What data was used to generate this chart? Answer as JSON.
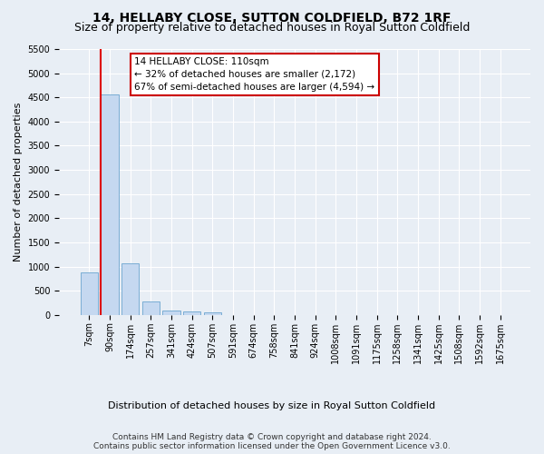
{
  "title": "14, HELLABY CLOSE, SUTTON COLDFIELD, B72 1RF",
  "subtitle": "Size of property relative to detached houses in Royal Sutton Coldfield",
  "xlabel": "Distribution of detached houses by size in Royal Sutton Coldfield",
  "ylabel": "Number of detached properties",
  "footer_line1": "Contains HM Land Registry data © Crown copyright and database right 2024.",
  "footer_line2": "Contains public sector information licensed under the Open Government Licence v3.0.",
  "annotation_title": "14 HELLABY CLOSE: 110sqm",
  "annotation_line2": "← 32% of detached houses are smaller (2,172)",
  "annotation_line3": "67% of semi-detached houses are larger (4,594) →",
  "bar_labels": [
    "7sqm",
    "90sqm",
    "174sqm",
    "257sqm",
    "341sqm",
    "424sqm",
    "507sqm",
    "591sqm",
    "674sqm",
    "758sqm",
    "841sqm",
    "924sqm",
    "1008sqm",
    "1091sqm",
    "1175sqm",
    "1258sqm",
    "1341sqm",
    "1425sqm",
    "1508sqm",
    "1592sqm",
    "1675sqm"
  ],
  "bar_values": [
    880,
    4560,
    1060,
    280,
    95,
    80,
    55,
    0,
    0,
    0,
    0,
    0,
    0,
    0,
    0,
    0,
    0,
    0,
    0,
    0,
    0
  ],
  "bar_color": "#c5d8f0",
  "bar_edge_color": "#7aadd4",
  "ylim": [
    0,
    5500
  ],
  "yticks": [
    0,
    500,
    1000,
    1500,
    2000,
    2500,
    3000,
    3500,
    4000,
    4500,
    5000,
    5500
  ],
  "bg_color": "#e8eef5",
  "plot_bg_color": "#e8eef5",
  "annotation_box_edgecolor": "#cc0000",
  "red_line_color": "#dd0000",
  "title_fontsize": 10,
  "subtitle_fontsize": 9,
  "tick_fontsize": 7,
  "ylabel_fontsize": 8,
  "xlabel_fontsize": 8
}
